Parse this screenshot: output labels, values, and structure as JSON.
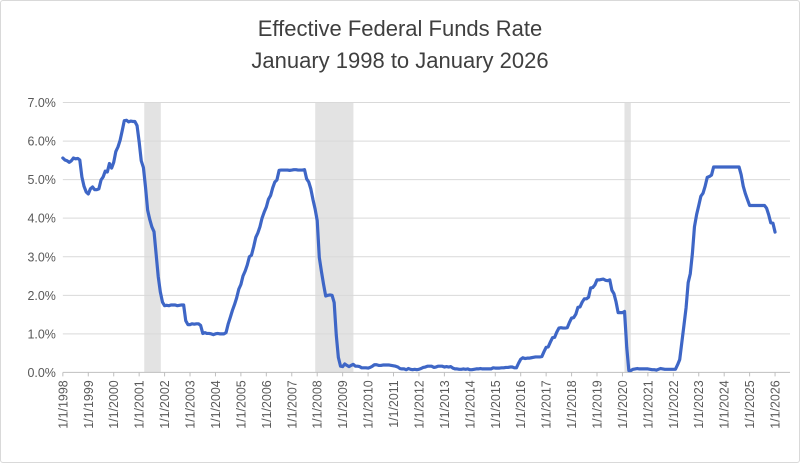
{
  "chart_data": {
    "type": "line",
    "title": "Effective Federal Funds Rate",
    "subtitle": "January 1998 to January 2026",
    "xlabel": "",
    "ylabel": "",
    "ylim": [
      0,
      7
    ],
    "grid": "horizontal",
    "legend": "none",
    "y_tick_labels": [
      "0.0%",
      "1.0%",
      "2.0%",
      "3.0%",
      "4.0%",
      "5.0%",
      "6.0%",
      "7.0%"
    ],
    "x_tick_labels": [
      "1/1/1998",
      "1/1/1999",
      "1/1/2000",
      "1/1/2001",
      "1/1/2002",
      "1/1/2003",
      "1/1/2004",
      "1/1/2005",
      "1/1/2006",
      "1/1/2007",
      "1/1/2008",
      "1/1/2009",
      "1/1/2010",
      "1/1/2011",
      "1/1/2012",
      "1/1/2013",
      "1/1/2014",
      "1/1/2015",
      "1/1/2016",
      "1/1/2017",
      "1/1/2018",
      "1/1/2019",
      "1/1/2020",
      "1/1/2021",
      "1/1/2022",
      "1/1/2023",
      "1/1/2024",
      "1/1/2025",
      "1/1/2026"
    ],
    "colors": {
      "line": "#3e66c6",
      "gridline": "#d9d9d9",
      "axis": "#bfbfbf",
      "band": "#e3e3e3",
      "tick_label": "#595959",
      "title": "#3f3f3f"
    },
    "recession_bands": [
      {
        "start_year": 2001.2,
        "end_year": 2001.85
      },
      {
        "start_year": 2007.92,
        "end_year": 2009.42
      },
      {
        "start_year": 2020.08,
        "end_year": 2020.33
      }
    ],
    "series": [
      {
        "name": "Effective Federal Funds Rate",
        "start_year": 1998,
        "interval": "monthly",
        "values": [
          5.56,
          5.51,
          5.49,
          5.45,
          5.49,
          5.56,
          5.54,
          5.55,
          5.51,
          5.07,
          4.83,
          4.68,
          4.63,
          4.76,
          4.81,
          4.74,
          4.74,
          4.76,
          4.99,
          5.07,
          5.22,
          5.2,
          5.42,
          5.3,
          5.45,
          5.73,
          5.85,
          6.02,
          6.27,
          6.53,
          6.54,
          6.5,
          6.52,
          6.51,
          6.51,
          6.4,
          5.98,
          5.49,
          5.31,
          4.8,
          4.21,
          3.97,
          3.77,
          3.65,
          3.07,
          2.49,
          2.09,
          1.82,
          1.73,
          1.74,
          1.73,
          1.75,
          1.75,
          1.75,
          1.73,
          1.74,
          1.75,
          1.75,
          1.34,
          1.24,
          1.24,
          1.26,
          1.25,
          1.26,
          1.26,
          1.22,
          1.01,
          1.03,
          1.01,
          1.01,
          1.0,
          0.98,
          1.0,
          1.01,
          1.0,
          1.0,
          1.0,
          1.03,
          1.26,
          1.43,
          1.61,
          1.76,
          1.93,
          2.16,
          2.28,
          2.5,
          2.63,
          2.79,
          3.0,
          3.04,
          3.26,
          3.5,
          3.62,
          3.78,
          4.0,
          4.16,
          4.29,
          4.49,
          4.59,
          4.79,
          4.94,
          4.99,
          5.24,
          5.25,
          5.25,
          5.25,
          5.25,
          5.24,
          5.25,
          5.26,
          5.26,
          5.25,
          5.25,
          5.25,
          5.26,
          5.02,
          4.94,
          4.76,
          4.49,
          4.24,
          3.94,
          2.98,
          2.61,
          2.28,
          1.98,
          2.0,
          2.01,
          2.0,
          1.81,
          0.97,
          0.39,
          0.16,
          0.15,
          0.22,
          0.18,
          0.15,
          0.18,
          0.21,
          0.16,
          0.16,
          0.15,
          0.12,
          0.12,
          0.12,
          0.11,
          0.13,
          0.16,
          0.2,
          0.2,
          0.18,
          0.18,
          0.19,
          0.19,
          0.19,
          0.19,
          0.18,
          0.17,
          0.16,
          0.14,
          0.1,
          0.09,
          0.09,
          0.07,
          0.1,
          0.08,
          0.07,
          0.08,
          0.07,
          0.08,
          0.1,
          0.13,
          0.14,
          0.16,
          0.16,
          0.16,
          0.13,
          0.14,
          0.16,
          0.16,
          0.16,
          0.14,
          0.15,
          0.14,
          0.15,
          0.11,
          0.09,
          0.09,
          0.08,
          0.08,
          0.09,
          0.08,
          0.09,
          0.07,
          0.07,
          0.08,
          0.09,
          0.09,
          0.1,
          0.09,
          0.09,
          0.09,
          0.09,
          0.09,
          0.12,
          0.11,
          0.11,
          0.11,
          0.12,
          0.12,
          0.13,
          0.13,
          0.14,
          0.14,
          0.12,
          0.12,
          0.24,
          0.34,
          0.38,
          0.36,
          0.37,
          0.37,
          0.38,
          0.39,
          0.4,
          0.4,
          0.4,
          0.41,
          0.54,
          0.65,
          0.66,
          0.79,
          0.9,
          0.91,
          1.04,
          1.15,
          1.16,
          1.15,
          1.15,
          1.16,
          1.3,
          1.41,
          1.42,
          1.51,
          1.69,
          1.7,
          1.82,
          1.91,
          1.91,
          1.95,
          2.19,
          2.2,
          2.27,
          2.4,
          2.4,
          2.41,
          2.42,
          2.39,
          2.38,
          2.4,
          2.13,
          2.04,
          1.83,
          1.55,
          1.55,
          1.55,
          1.58,
          0.65,
          0.05,
          0.05,
          0.08,
          0.09,
          0.1,
          0.09,
          0.09,
          0.09,
          0.09,
          0.09,
          0.08,
          0.07,
          0.07,
          0.06,
          0.08,
          0.1,
          0.09,
          0.08,
          0.08,
          0.08,
          0.08,
          0.08,
          0.08,
          0.2,
          0.33,
          0.77,
          1.21,
          1.68,
          2.33,
          2.56,
          3.08,
          3.78,
          4.1,
          4.33,
          4.57,
          4.65,
          4.83,
          5.06,
          5.08,
          5.12,
          5.33,
          5.33,
          5.33,
          5.33,
          5.33,
          5.33,
          5.33,
          5.33,
          5.33,
          5.33,
          5.33,
          5.33,
          5.33,
          5.13,
          4.83,
          4.64,
          4.48,
          4.33,
          4.33,
          4.33,
          4.33,
          4.33,
          4.33,
          4.33,
          4.33,
          4.26,
          4.09,
          3.88,
          3.87,
          3.64
        ]
      }
    ]
  }
}
